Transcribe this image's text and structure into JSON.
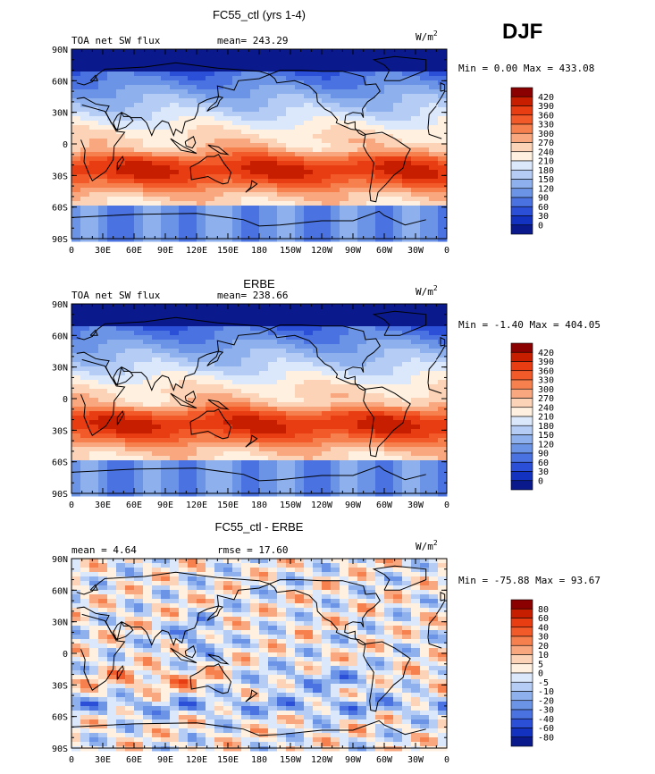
{
  "season": "DJF",
  "units": {
    "base": "W/m",
    "exp": "2"
  },
  "lat_labels": [
    "90N",
    "60N",
    "30N",
    "0",
    "30S",
    "60S",
    "90S"
  ],
  "lon_labels": [
    "0",
    "30E",
    "60E",
    "90E",
    "120E",
    "150E",
    "180",
    "150W",
    "120W",
    "90W",
    "60W",
    "30W",
    "0"
  ],
  "panels": [
    {
      "id": "model",
      "title": "FC55_ctl (yrs 1-4)",
      "subtitle_left": "TOA net SW flux",
      "subtitle_mid": "mean= 243.29",
      "minmax": "Min =   0.00 Max = 433.08",
      "levels": [
        "420",
        "390",
        "360",
        "330",
        "300",
        "270",
        "240",
        "210",
        "180",
        "150",
        "120",
        "90",
        "60",
        "30",
        "0"
      ],
      "colors": [
        "#8b0000",
        "#c81e00",
        "#e83d12",
        "#f25a2a",
        "#f7804f",
        "#f9a77f",
        "#fcd3b6",
        "#fff0e0",
        "#dbe7fb",
        "#b5cdf5",
        "#8eb1ee",
        "#6c94e6",
        "#4a72e0",
        "#2b4fd6",
        "#1432c0",
        "#0a1a8c"
      ]
    },
    {
      "id": "obs",
      "title": "ERBE",
      "subtitle_left": "TOA net SW flux",
      "subtitle_mid": "mean= 238.66",
      "minmax": "Min =  -1.40 Max = 404.05",
      "levels": [
        "420",
        "390",
        "360",
        "330",
        "300",
        "270",
        "240",
        "210",
        "180",
        "150",
        "120",
        "90",
        "60",
        "30",
        "0"
      ],
      "colors": [
        "#8b0000",
        "#c81e00",
        "#e83d12",
        "#f25a2a",
        "#f7804f",
        "#f9a77f",
        "#fcd3b6",
        "#fff0e0",
        "#dbe7fb",
        "#b5cdf5",
        "#8eb1ee",
        "#6c94e6",
        "#4a72e0",
        "#2b4fd6",
        "#1432c0",
        "#0a1a8c"
      ]
    },
    {
      "id": "diff",
      "title": "FC55_ctl - ERBE",
      "subtitle_left": "mean =    4.64",
      "subtitle_mid": "rmse =   17.60",
      "minmax": "Min = -75.88 Max =  93.67",
      "levels": [
        "80",
        "60",
        "40",
        "30",
        "20",
        "10",
        "5",
        "0",
        "-5",
        "-10",
        "-20",
        "-30",
        "-40",
        "-60",
        "-80"
      ],
      "colors": [
        "#8b0000",
        "#c81e00",
        "#e83d12",
        "#f25a2a",
        "#f7804f",
        "#f9a77f",
        "#fcd3b6",
        "#fff0e0",
        "#dbe7fb",
        "#b5cdf5",
        "#8eb1ee",
        "#6c94e6",
        "#4a72e0",
        "#2b4fd6",
        "#1432c0",
        "#0a1a8c"
      ]
    }
  ]
}
